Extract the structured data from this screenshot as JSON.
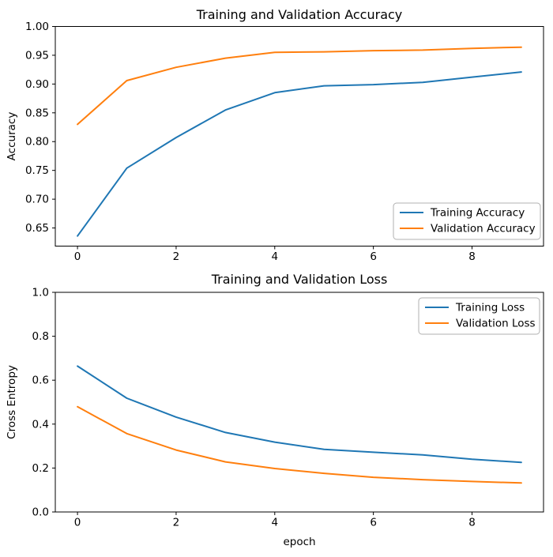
{
  "figure": {
    "background": "#ffffff",
    "axes_color": "#000000",
    "text_color": "#000000"
  },
  "chart_data": [
    {
      "type": "line",
      "title": "Training and Validation Accuracy",
      "xlabel": "",
      "ylabel": "Accuracy",
      "x": [
        0,
        1,
        2,
        3,
        4,
        5,
        6,
        7,
        8,
        9
      ],
      "series": [
        {
          "name": "Training Accuracy",
          "color": "#1f77b4",
          "values": [
            0.636,
            0.754,
            0.807,
            0.855,
            0.885,
            0.897,
            0.899,
            0.903,
            0.912,
            0.921
          ]
        },
        {
          "name": "Validation Accuracy",
          "color": "#ff7f0e",
          "values": [
            0.83,
            0.906,
            0.929,
            0.945,
            0.955,
            0.956,
            0.958,
            0.959,
            0.962,
            0.964
          ]
        }
      ],
      "xlim": [
        -0.45,
        9.45
      ],
      "ylim": [
        0.6185,
        1.0
      ],
      "xticks": {
        "values": [
          0,
          2,
          4,
          6,
          8
        ],
        "labels": [
          "0",
          "2",
          "4",
          "6",
          "8"
        ]
      },
      "yticks": {
        "values": [
          0.65,
          0.7,
          0.75,
          0.8,
          0.85,
          0.9,
          0.95,
          1.0
        ],
        "labels": [
          "0.65",
          "0.70",
          "0.75",
          "0.80",
          "0.85",
          "0.90",
          "0.95",
          "1.00"
        ]
      },
      "legend": {
        "position": "lower right",
        "entries": [
          "Training Accuracy",
          "Validation Accuracy"
        ]
      },
      "grid": false
    },
    {
      "type": "line",
      "title": "Training and Validation Loss",
      "xlabel": "epoch",
      "ylabel": "Cross Entropy",
      "x": [
        0,
        1,
        2,
        3,
        4,
        5,
        6,
        7,
        8,
        9
      ],
      "series": [
        {
          "name": "Training Loss",
          "color": "#1f77b4",
          "values": [
            0.664,
            0.518,
            0.432,
            0.362,
            0.318,
            0.285,
            0.272,
            0.26,
            0.24,
            0.226
          ]
        },
        {
          "name": "Validation Loss",
          "color": "#ff7f0e",
          "values": [
            0.479,
            0.357,
            0.282,
            0.228,
            0.198,
            0.176,
            0.158,
            0.147,
            0.139,
            0.132
          ]
        }
      ],
      "xlim": [
        -0.45,
        9.45
      ],
      "ylim": [
        0.0,
        1.0
      ],
      "xticks": {
        "values": [
          0,
          2,
          4,
          6,
          8
        ],
        "labels": [
          "0",
          "2",
          "4",
          "6",
          "8"
        ]
      },
      "yticks": {
        "values": [
          0.0,
          0.2,
          0.4,
          0.6,
          0.8,
          1.0
        ],
        "labels": [
          "0.0",
          "0.2",
          "0.4",
          "0.6",
          "0.8",
          "1.0"
        ]
      },
      "legend": {
        "position": "upper right",
        "entries": [
          "Training Loss",
          "Validation Loss"
        ]
      },
      "grid": false
    }
  ]
}
